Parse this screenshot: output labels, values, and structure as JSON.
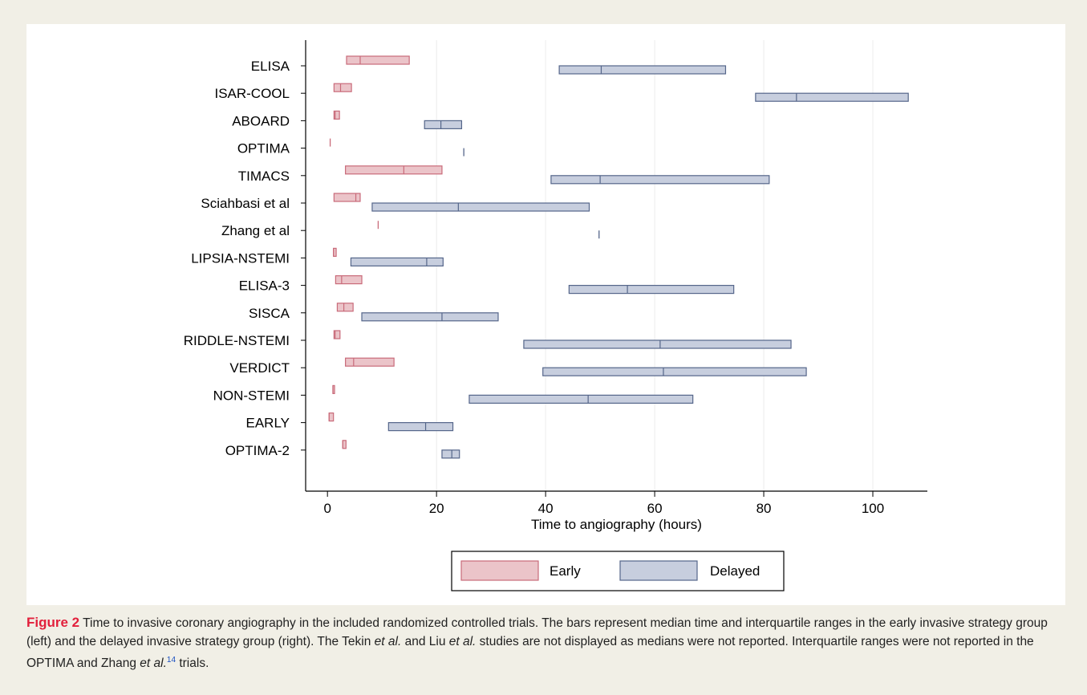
{
  "chart_data": {
    "type": "bar",
    "orientation": "horizontal",
    "xlabel": "Time to angiography (hours)",
    "xlim": [
      -4,
      110
    ],
    "xticks": [
      0,
      20,
      40,
      60,
      80,
      100
    ],
    "grid": true,
    "legend_position": "bottom",
    "categories": [
      "ELISA",
      "ISAR-COOL",
      "ABOARD",
      "OPTIMA",
      "TIMACS",
      "Sciahbasi et al",
      "Zhang et al",
      "LIPSIA-NSTEMI",
      "ELISA-3",
      "SISCA",
      "RIDDLE-NSTEMI",
      "VERDICT",
      "NON-STEMI",
      "EARLY",
      "OPTIMA-2"
    ],
    "series": [
      {
        "name": "Early",
        "color": "#ebc4c9",
        "edge": "#c96b7a",
        "data": [
          {
            "q1": 3.5,
            "median": 6,
            "q3": 15
          },
          {
            "q1": 1.2,
            "median": 2.4,
            "q3": 4.4
          },
          {
            "q1": 1.2,
            "median": 1.4,
            "q3": 2.2
          },
          {
            "q1": 0.5,
            "median": 0.5,
            "q3": 0.5
          },
          {
            "q1": 3.3,
            "median": 14,
            "q3": 21
          },
          {
            "q1": 1.2,
            "median": 5.2,
            "q3": 6.0
          },
          {
            "q1": 9.3,
            "median": 9.3,
            "q3": 9.3
          },
          {
            "q1": 1.1,
            "median": 1.1,
            "q3": 1.6
          },
          {
            "q1": 1.5,
            "median": 2.6,
            "q3": 6.3
          },
          {
            "q1": 1.8,
            "median": 3.0,
            "q3": 4.7
          },
          {
            "q1": 1.2,
            "median": 1.4,
            "q3": 2.3
          },
          {
            "q1": 3.3,
            "median": 4.8,
            "q3": 12.2
          },
          {
            "q1": 1.0,
            "median": 1.0,
            "q3": 1.3
          },
          {
            "q1": 0.3,
            "median": 0.3,
            "q3": 1.1
          },
          {
            "q1": 2.8,
            "median": 2.8,
            "q3": 3.4
          }
        ]
      },
      {
        "name": "Delayed",
        "color": "#c7cede",
        "edge": "#55668a",
        "data": [
          {
            "q1": 42.5,
            "median": 50.2,
            "q3": 73
          },
          {
            "q1": 78.5,
            "median": 86,
            "q3": 106.5
          },
          {
            "q1": 17.8,
            "median": 20.8,
            "q3": 24.6
          },
          {
            "q1": 25,
            "median": 25,
            "q3": 25
          },
          {
            "q1": 41,
            "median": 50,
            "q3": 81
          },
          {
            "q1": 8.2,
            "median": 24,
            "q3": 48
          },
          {
            "q1": 49.8,
            "median": 49.8,
            "q3": 49.8
          },
          {
            "q1": 4.3,
            "median": 18.2,
            "q3": 21.2
          },
          {
            "q1": 44.3,
            "median": 55,
            "q3": 74.5
          },
          {
            "q1": 6.3,
            "median": 21,
            "q3": 31.3
          },
          {
            "q1": 36,
            "median": 61,
            "q3": 85
          },
          {
            "q1": 39.5,
            "median": 61.6,
            "q3": 87.8
          },
          {
            "q1": 26,
            "median": 47.8,
            "q3": 67
          },
          {
            "q1": 11.2,
            "median": 18,
            "q3": 23
          },
          {
            "q1": 21,
            "median": 22.8,
            "q3": 24.2
          }
        ]
      }
    ]
  },
  "caption": {
    "label": "Figure 2",
    "text_html": "Time to invasive coronary angiography in the included randomized controlled trials. The bars represent median time and interquartile ranges in the early invasive strategy group (left) and the delayed invasive strategy group (right). The Tekin <i>et al.</i> and Liu <i>et al.</i> studies are not displayed as medians were not reported. Interquartile ranges were not reported in the OPTIMA and Zhang <i>et al.</i><sup>14</sup> trials."
  }
}
